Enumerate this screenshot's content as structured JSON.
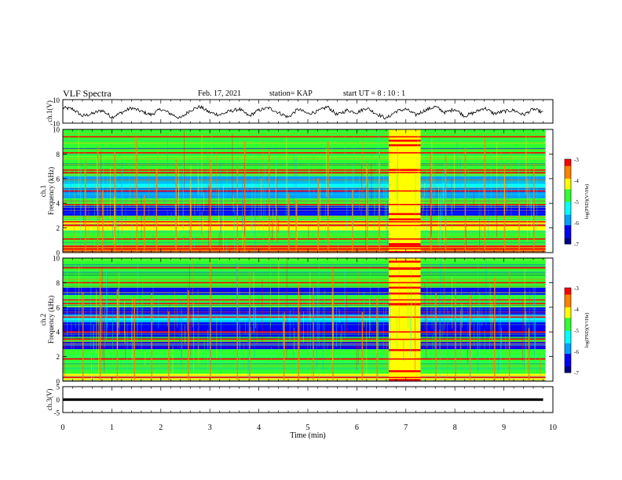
{
  "header": {
    "title": "VLF Spectra",
    "date": "Feb. 17, 2021",
    "station": "station= KAP",
    "start_ut": "start  UT =   8 : 10 : 1"
  },
  "chart_data": [
    {
      "type": "line",
      "name": "ch1-waveform",
      "ylabel": "ch.1(V)",
      "ylim": [
        -10,
        10
      ],
      "yticks": [
        "10",
        "-10"
      ],
      "xlim": [
        0,
        10
      ],
      "x_end": 9.8,
      "levels": [
        3,
        2,
        -4,
        -2,
        1,
        -5,
        -1,
        3,
        0,
        -3,
        2,
        -2,
        -6,
        1,
        4,
        -1,
        -3,
        0,
        2,
        -4,
        1,
        3,
        -1,
        -5,
        2,
        -2,
        0,
        4,
        -3,
        1,
        -1,
        3,
        -2,
        -6,
        0,
        2,
        -3,
        1,
        4,
        -1,
        2,
        -4,
        -1,
        3,
        -2,
        0,
        1,
        -3,
        2,
        -1
      ]
    },
    {
      "type": "heatmap",
      "name": "ch1-spectrogram",
      "ylabel": "ch.1\nFrequency (kHz)",
      "ylim": [
        0,
        10
      ],
      "yticks": [
        "0",
        "2",
        "4",
        "6",
        "8",
        "10"
      ],
      "xlim": [
        0,
        10
      ],
      "colorbar": {
        "label": "log(PSD)(V²/Hz)",
        "range": [
          -7,
          -3
        ],
        "ticks": [
          "-3",
          "-4",
          "-5",
          "-6",
          "-7"
        ]
      },
      "bands_khz": [
        {
          "f0": 0.0,
          "f1": 0.6,
          "level": -3.8
        },
        {
          "f0": 0.6,
          "f1": 1.8,
          "level": -4.8
        },
        {
          "f0": 1.8,
          "f1": 2.6,
          "level": -4.3
        },
        {
          "f0": 2.6,
          "f1": 3.0,
          "level": -5.0
        },
        {
          "f0": 3.0,
          "f1": 3.8,
          "level": -6.4
        },
        {
          "f0": 3.8,
          "f1": 4.4,
          "level": -4.6
        },
        {
          "f0": 4.4,
          "f1": 5.3,
          "level": -6.1
        },
        {
          "f0": 5.3,
          "f1": 5.7,
          "level": -5.2
        },
        {
          "f0": 5.7,
          "f1": 6.2,
          "level": -6.0
        },
        {
          "f0": 6.2,
          "f1": 6.8,
          "level": -4.6
        },
        {
          "f0": 6.8,
          "f1": 10.0,
          "level": -4.9
        }
      ],
      "lines_khz": [
        0.3,
        0.5,
        1.1,
        2.2,
        2.5,
        3.9,
        5.0,
        6.5,
        6.7,
        8.1,
        9.4
      ],
      "burst": {
        "t0": 6.65,
        "t1": 7.3
      },
      "spikes_min": [
        0.45,
        0.7,
        0.8,
        1.05,
        1.5,
        1.65,
        1.9,
        2.3,
        2.6,
        3.0,
        3.55,
        3.7,
        4.2,
        4.6,
        4.75,
        5.2,
        5.4,
        5.9,
        6.2,
        6.45,
        7.5,
        7.8,
        8.2,
        8.6,
        9.0,
        9.3,
        9.6
      ]
    },
    {
      "type": "heatmap",
      "name": "ch2-spectrogram",
      "ylabel": "ch.2\nFrequency (kHz)",
      "ylim": [
        0,
        10
      ],
      "yticks": [
        "0",
        "2",
        "4",
        "6",
        "8",
        "10"
      ],
      "xlim": [
        0,
        10
      ],
      "colorbar": {
        "label": "log(PSD)(V²/Hz)",
        "range": [
          -7,
          -3
        ],
        "ticks": [
          "-3",
          "-4",
          "-5",
          "-6",
          "-7"
        ]
      },
      "bands_khz": [
        {
          "f0": 0.0,
          "f1": 0.6,
          "level": -4.0
        },
        {
          "f0": 0.6,
          "f1": 1.8,
          "level": -5.0
        },
        {
          "f0": 1.8,
          "f1": 2.6,
          "level": -4.6
        },
        {
          "f0": 2.6,
          "f1": 3.2,
          "level": -6.3
        },
        {
          "f0": 3.2,
          "f1": 3.6,
          "level": -4.5
        },
        {
          "f0": 3.6,
          "f1": 4.8,
          "level": -6.5
        },
        {
          "f0": 4.8,
          "f1": 5.4,
          "level": -5.4
        },
        {
          "f0": 5.4,
          "f1": 6.0,
          "level": -6.4
        },
        {
          "f0": 6.0,
          "f1": 7.0,
          "level": -4.8
        },
        {
          "f0": 7.0,
          "f1": 7.6,
          "level": -6.2
        },
        {
          "f0": 7.6,
          "f1": 10.0,
          "level": -4.9
        }
      ],
      "lines_khz": [
        0.3,
        1.8,
        3.4,
        4.0,
        5.2,
        6.3,
        6.6,
        8.0,
        9.2
      ],
      "burst": {
        "t0": 6.65,
        "t1": 7.3
      },
      "spikes_min": [
        0.4,
        0.75,
        1.1,
        1.45,
        1.8,
        2.15,
        2.55,
        3.0,
        3.55,
        3.8,
        4.5,
        4.8,
        5.1,
        5.5,
        6.1,
        6.4,
        7.6,
        8.0,
        8.3,
        8.8,
        9.1,
        9.5
      ]
    },
    {
      "type": "line",
      "name": "ch3-waveform",
      "ylabel": "ch.3(V)",
      "ylim": [
        -5,
        5
      ],
      "yticks": [
        "5",
        "0",
        "-5"
      ],
      "xlim": [
        0,
        10
      ],
      "x_end": 9.8,
      "level_v": 0,
      "noise_v": 0.5
    }
  ],
  "x_axis": {
    "label": "Time (min)",
    "ticks": [
      "0",
      "1",
      "2",
      "3",
      "4",
      "5",
      "6",
      "7",
      "8",
      "9",
      "10"
    ]
  },
  "colorscale": [
    "#000080",
    "#0000ff",
    "#00a0ff",
    "#00ffff",
    "#30ff30",
    "#ffff00",
    "#ff8000",
    "#ff0000"
  ]
}
